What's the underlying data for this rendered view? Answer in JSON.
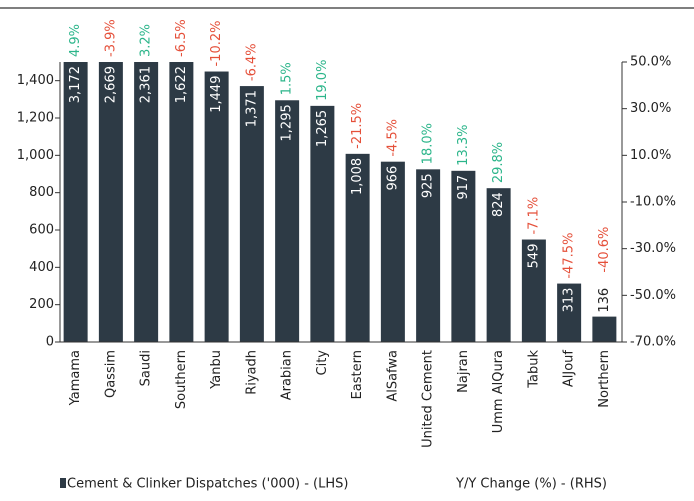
{
  "chart_data": {
    "type": "bar",
    "categories": [
      "Yamama",
      "Qassim",
      "Saudi",
      "Southern",
      "Yanbu",
      "Riyadh",
      "Arabian",
      "City",
      "Eastern",
      "AlSafwa",
      "United Cement",
      "Najran",
      "Umm AlQura",
      "Tabuk",
      "AlJouf",
      "Northern"
    ],
    "series": [
      {
        "name": "Cement & Clinker Dispatches ('000) - (LHS)",
        "color": "#2d3a45",
        "values": [
          3172,
          2669,
          2361,
          1622,
          1449,
          1371,
          1295,
          1265,
          1008,
          966,
          925,
          917,
          824,
          549,
          313,
          136
        ],
        "value_labels": [
          "3,172",
          "2,669",
          "2,361",
          "1,622",
          "1,449",
          "1,371",
          "1,295",
          "1,265",
          "1,008",
          "966",
          "925",
          "917",
          "824",
          "549",
          "313",
          "136"
        ]
      },
      {
        "name": "Y/Y Change (%) - (RHS)",
        "axis": "y2",
        "positive_color": "#2bb58a",
        "negative_color": "#e5503a",
        "values": [
          4.9,
          -3.9,
          3.2,
          -6.5,
          -10.2,
          -6.4,
          1.5,
          19.0,
          -21.5,
          -4.5,
          18.0,
          13.3,
          29.8,
          -7.1,
          -47.5,
          -40.6
        ],
        "value_labels": [
          "4.9%",
          "-3.9%",
          "3.2%",
          "-6.5%",
          "-10.2%",
          "-6.4%",
          "1.5%",
          "19.0%",
          "-21.5%",
          "-4.5%",
          "18.0%",
          "13.3%",
          "29.8%",
          "-7.1%",
          "-47.5%",
          "-40.6%"
        ]
      }
    ],
    "ylim": [
      0,
      1500
    ],
    "yticks": [
      0,
      200,
      400,
      600,
      800,
      {
        "value": 1000,
        "label": "1,000"
      },
      {
        "value": 1200,
        "label": "1,200"
      },
      {
        "value": 1400,
        "label": "1,400"
      }
    ],
    "y2lim": [
      -70,
      50
    ],
    "y2ticks": [
      {
        "value": -70,
        "label": "-70.0%"
      },
      {
        "value": -50,
        "label": "-50.0%"
      },
      {
        "value": -30,
        "label": "-30.0%"
      },
      {
        "value": -10,
        "label": "-10.0%"
      },
      {
        "value": 10,
        "label": "10.0%"
      },
      {
        "value": 30,
        "label": "30.0%"
      },
      {
        "value": 50,
        "label": "50.0%"
      }
    ]
  }
}
